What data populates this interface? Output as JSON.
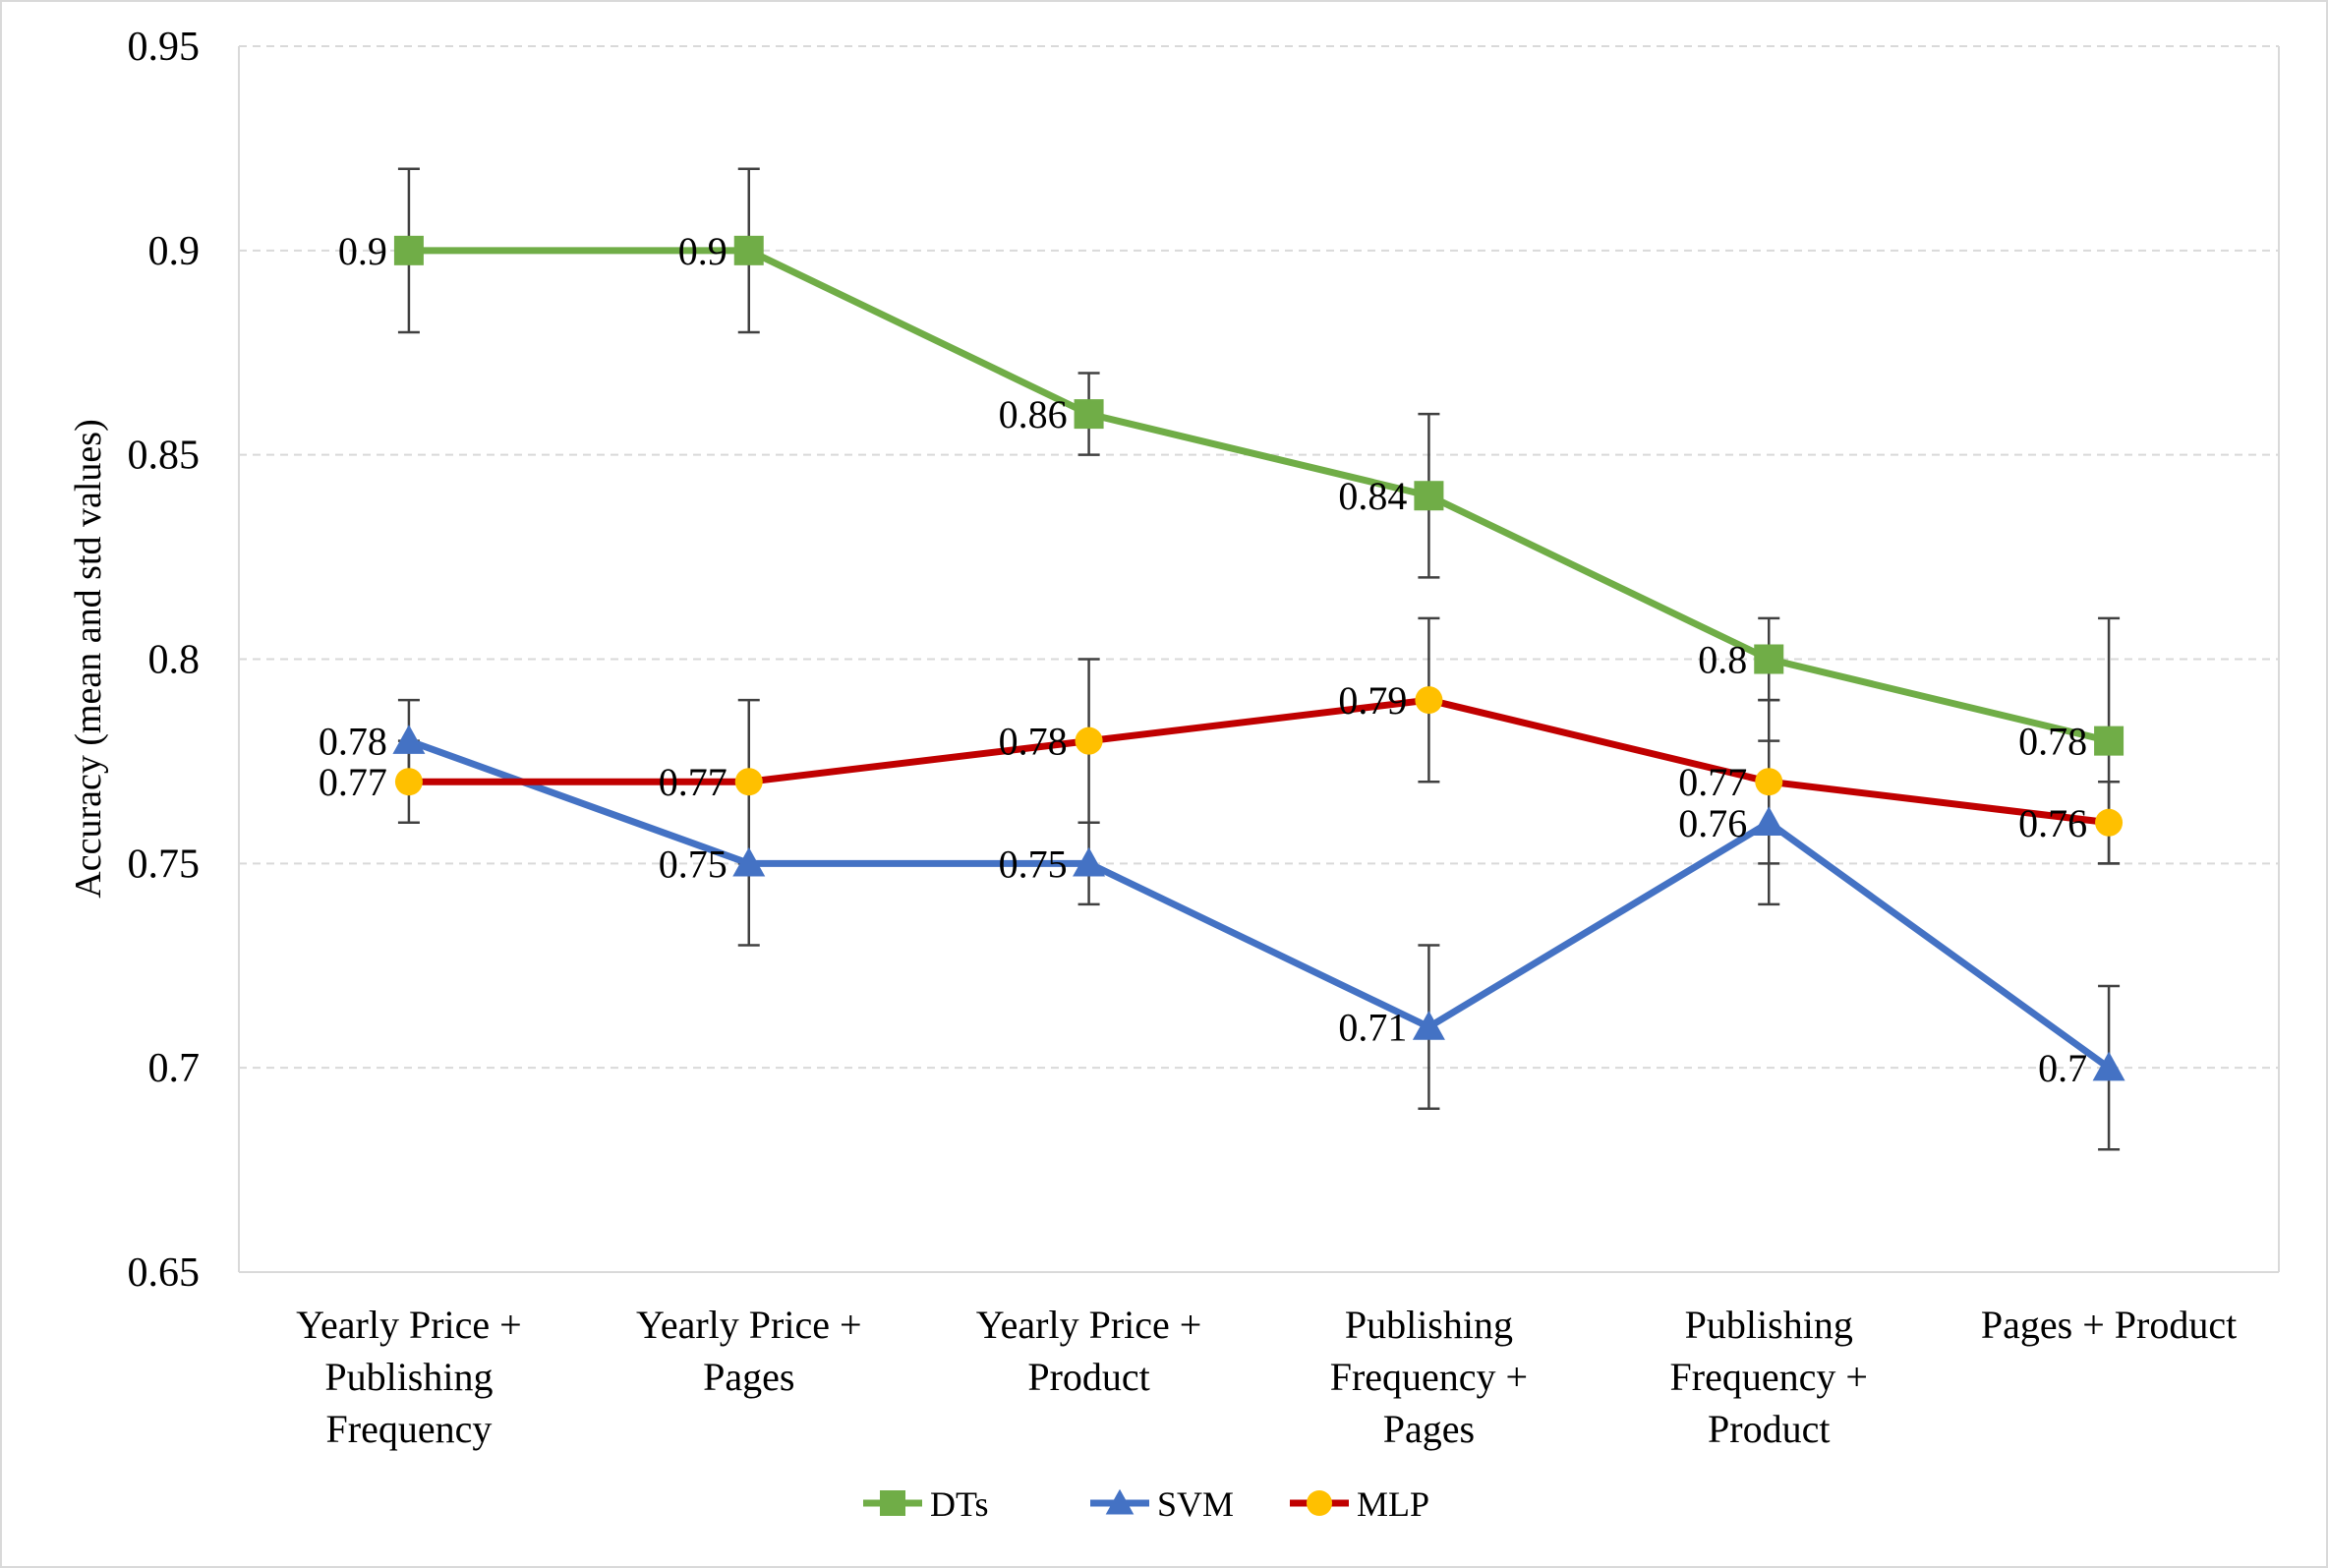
{
  "chart_data": {
    "type": "line",
    "title": "",
    "xlabel": "",
    "ylabel": "Accuracy (mean and std values)",
    "ylim": [
      0.65,
      0.95
    ],
    "yticks": [
      "0.65",
      "0.7",
      "0.75",
      "0.8",
      "0.85",
      "0.9",
      "0.95"
    ],
    "ytick_values": [
      0.65,
      0.7,
      0.75,
      0.8,
      0.85,
      0.9,
      0.95
    ],
    "grid": "horizontal dashed",
    "legend_position": "bottom",
    "categories": [
      [
        "Yearly Price +",
        "Publishing",
        "Frequency"
      ],
      [
        "Yearly Price +",
        "Pages"
      ],
      [
        "Yearly Price +",
        "Product"
      ],
      [
        "Publishing",
        "Frequency +",
        "Pages"
      ],
      [
        "Publishing",
        "Frequency +",
        "Product"
      ],
      [
        "Pages + Product"
      ]
    ],
    "series": [
      {
        "name": "DTs",
        "color": "#70ad47",
        "marker": "square",
        "values": [
          0.9,
          0.9,
          0.86,
          0.84,
          0.8,
          0.78
        ],
        "labels": [
          "0.9",
          "0.9",
          "0.86",
          "0.84",
          "0.8",
          "0.78"
        ],
        "err_low": [
          0.88,
          0.88,
          0.85,
          0.82,
          0.79,
          0.75
        ],
        "err_high": [
          0.92,
          0.92,
          0.87,
          0.86,
          0.81,
          0.81
        ]
      },
      {
        "name": "SVM",
        "color": "#4472c4",
        "marker": "triangle",
        "values": [
          0.78,
          0.75,
          0.75,
          0.71,
          0.76,
          0.7
        ],
        "labels": [
          "0.78",
          "0.75",
          "0.75",
          "0.71",
          "0.76",
          "0.7"
        ],
        "err_low": [
          0.77,
          0.73,
          0.74,
          0.69,
          0.74,
          0.68
        ],
        "err_high": [
          0.79,
          0.77,
          0.76,
          0.73,
          0.78,
          0.72
        ]
      },
      {
        "name": "MLP",
        "color": "#c00000",
        "marker_color": "#ffc000",
        "marker": "circle",
        "values": [
          0.77,
          0.77,
          0.78,
          0.79,
          0.77,
          0.76
        ],
        "labels": [
          "0.77",
          "0.77",
          "0.78",
          "0.79",
          "0.77",
          "0.76"
        ],
        "err_low": [
          0.76,
          0.75,
          0.76,
          0.77,
          0.75,
          0.75
        ],
        "err_high": [
          0.78,
          0.79,
          0.8,
          0.81,
          0.79,
          0.77
        ]
      }
    ]
  }
}
